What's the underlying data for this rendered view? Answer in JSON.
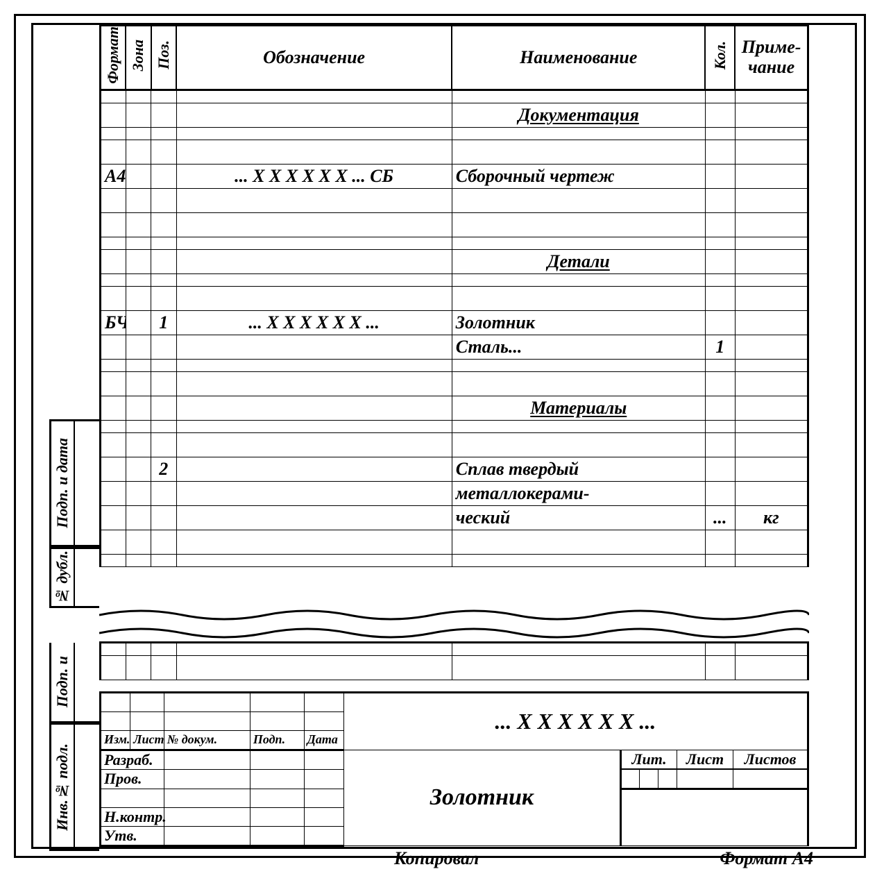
{
  "headers": {
    "format": "Формат",
    "zone": "Зона",
    "pos": "Поз.",
    "designation": "Обозначение",
    "name": "Наименование",
    "qty": "Кол.",
    "note": "Приме-\nчание"
  },
  "rows": [
    {
      "t": "half"
    },
    {
      "name": "Документация",
      "u": true,
      "center": true,
      "t": "full"
    },
    {
      "t": "half"
    },
    {
      "t": "full"
    },
    {
      "format": "А4",
      "designation": "... Х Х Х Х Х Х ... СБ",
      "name": "Сборочный чертеж",
      "t": "full"
    },
    {
      "t": "full"
    },
    {
      "t": "full"
    },
    {
      "t": "half"
    },
    {
      "name": "Детали",
      "u": true,
      "center": true,
      "t": "full"
    },
    {
      "t": "half"
    },
    {
      "t": "full"
    },
    {
      "format": "БЧ",
      "pos": "1",
      "designation": "... Х Х Х Х Х Х ...",
      "name": "Золотник",
      "t": "full"
    },
    {
      "name": "Сталь...",
      "qty": "1",
      "t": "full"
    },
    {
      "t": "half"
    },
    {
      "t": "full"
    },
    {
      "name": "Материалы",
      "u": true,
      "center": true,
      "t": "full"
    },
    {
      "t": "half"
    },
    {
      "t": "full"
    },
    {
      "pos": "2",
      "name": "Сплав твердый",
      "t": "full"
    },
    {
      "name": "металлокерами-",
      "t": "full"
    },
    {
      "name": "ческий",
      "qty": "...",
      "note": "кг",
      "t": "full"
    },
    {
      "t": "full"
    },
    {
      "t": "half"
    }
  ],
  "side": {
    "podp_data": "Подп. и дата",
    "dubl": "№ дубл.",
    "podp_u": "Подп. и",
    "inv_podl": "Инв.№ подл."
  },
  "title_block": {
    "izm": "Изм.",
    "list": "Лист",
    "ndoc": "№ докум.",
    "podp": "Подп.",
    "data": "Дата",
    "razrab": "Разраб.",
    "prov": "Пров.",
    "nkontr": "Н.контр.",
    "utv": "Утв.",
    "code": "...  Х Х Х Х Х Х  ...",
    "name": "Золотник",
    "lit": "Лит.",
    "list2": "Лист",
    "listov": "Листов"
  },
  "footer": {
    "kopiroval": "Копировал",
    "format": "Формат А4"
  },
  "style": {
    "border_color": "#000000",
    "bg": "#ffffff",
    "font_size_body": 26,
    "font_size_small": 22
  }
}
